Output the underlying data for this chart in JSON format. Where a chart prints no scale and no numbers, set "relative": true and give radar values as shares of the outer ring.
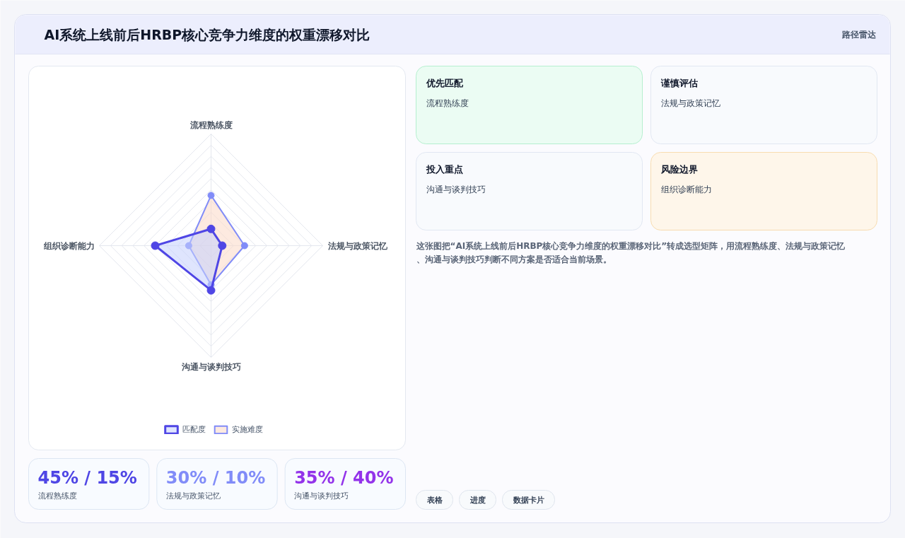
{
  "chart_data": [
    {
      "type": "radar",
      "title": "AI系统上线前后HRBP核心竞争力维度的权重漂移对比",
      "categories": [
        "流程熟练度",
        "法规与政策记忆",
        "沟通与谈判技巧",
        "组织诊断能力"
      ],
      "series": [
        {
          "name": "匹配度",
          "color": "#4f46e5",
          "values": [
            0.15,
            0.1,
            0.4,
            0.5
          ]
        },
        {
          "name": "实施难度",
          "color": "#818cf8",
          "values": [
            0.45,
            0.3,
            0.35,
            0.2
          ]
        }
      ],
      "relative": true,
      "grid": true,
      "legend": "bottom",
      "marker": "circle"
    },
    {
      "type": "other",
      "title": "路径雷达",
      "annotations": [
        "优先匹配",
        "流程熟练度",
        "谨慎评估",
        "法规与政策记忆",
        "投入重点",
        "沟通与谈判技巧",
        "风险边界",
        "组织诊断能力",
        "这张图把“AI系统上线前后HRBP核心竞争力维度的权重漂移对比”转成选型矩阵，用流程熟练度、法规与政策记忆、沟通与谈判技巧判断不同方案是否适合当前场景。"
      ]
    },
    {
      "type": "other",
      "annotations": [
        "45% / 15%",
        "流程熟练度",
        "30% / 10%",
        "法规与政策记忆",
        "35% / 40%",
        "沟通与谈判技巧"
      ]
    },
    {
      "type": "other",
      "annotations": [
        "表格",
        "进度",
        "数据卡片"
      ]
    }
  ]
}
